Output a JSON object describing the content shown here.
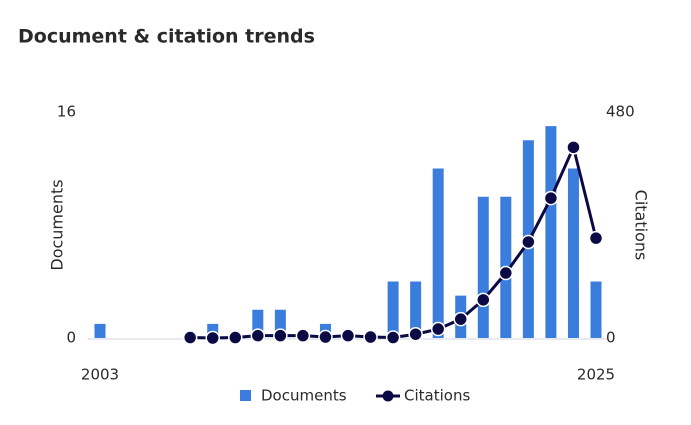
{
  "chart_data": {
    "type": "bar-line",
    "title": "Document & citation trends",
    "x": [
      2003,
      2004,
      2005,
      2006,
      2007,
      2008,
      2009,
      2010,
      2011,
      2012,
      2013,
      2014,
      2015,
      2016,
      2017,
      2018,
      2019,
      2020,
      2021,
      2022,
      2023,
      2024,
      2025
    ],
    "xlim": [
      2003,
      2025
    ],
    "xticks": [
      2003,
      2025
    ],
    "ylabel": "Documents",
    "y2label": "Citations",
    "ylim": [
      0,
      16
    ],
    "yticks": [
      0,
      16
    ],
    "y2lim": [
      0,
      480
    ],
    "y2ticks": [
      0,
      480
    ],
    "series": [
      {
        "name": "Documents",
        "type": "bar",
        "color": "#3b7ddd",
        "values": [
          1,
          0,
          0,
          0,
          0,
          1,
          0,
          2,
          2,
          0,
          1,
          0,
          0,
          4,
          4,
          12,
          3,
          10,
          10,
          14,
          15,
          12,
          4
        ]
      },
      {
        "name": "Citations",
        "type": "line",
        "axis": "y2",
        "color": "#0b0a45",
        "values": [
          null,
          null,
          null,
          null,
          1,
          0,
          1,
          5,
          5,
          5,
          2,
          5,
          2,
          1,
          8,
          19,
          40,
          81,
          138,
          204,
          297,
          405,
          212
        ]
      }
    ]
  }
}
